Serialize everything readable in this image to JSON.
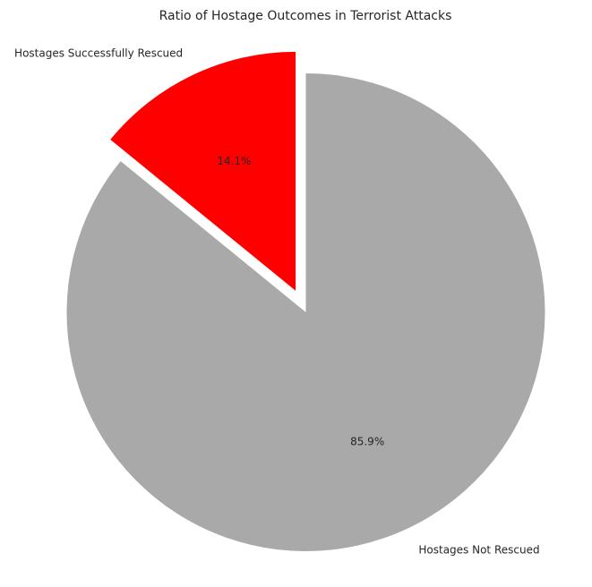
{
  "chart_data": {
    "type": "pie",
    "title": "Ratio of Hostage Outcomes in Terrorist Attacks",
    "slices": [
      {
        "label": "Hostages Successfully Rescued",
        "value": 14.1,
        "pct_label": "14.1%",
        "color": "#ff0000",
        "exploded": true
      },
      {
        "label": "Hostages Not Rescued",
        "value": 85.9,
        "pct_label": "85.9%",
        "color": "#a9a9a9",
        "exploded": false
      }
    ],
    "start_angle_deg": 90,
    "direction": "counterclockwise",
    "legend": "none"
  }
}
